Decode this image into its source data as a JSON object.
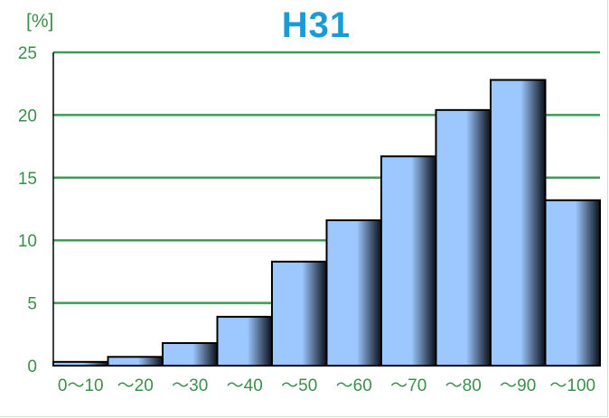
{
  "chart_data": {
    "type": "bar",
    "title": "H31",
    "y_unit_label": "[%]",
    "categories": [
      "0～10",
      "～20",
      "～30",
      "～40",
      "～50",
      "～60",
      "～70",
      "～80",
      "～90",
      "～100"
    ],
    "values": [
      0.3,
      0.7,
      1.8,
      3.9,
      8.3,
      11.6,
      16.7,
      20.4,
      22.8,
      13.2
    ],
    "ylim": [
      0,
      25
    ],
    "yticks": [
      0,
      5,
      10,
      15,
      20,
      25
    ],
    "grid": true,
    "legend": "none"
  },
  "colors": {
    "title": "#1a9ad6",
    "axis_text": "#3a8f4a",
    "gridline": "#3f9a5a",
    "bar_highlight": "#9cc8ff",
    "bar_dark": "#0a0f18",
    "bar_border": "#000000"
  }
}
